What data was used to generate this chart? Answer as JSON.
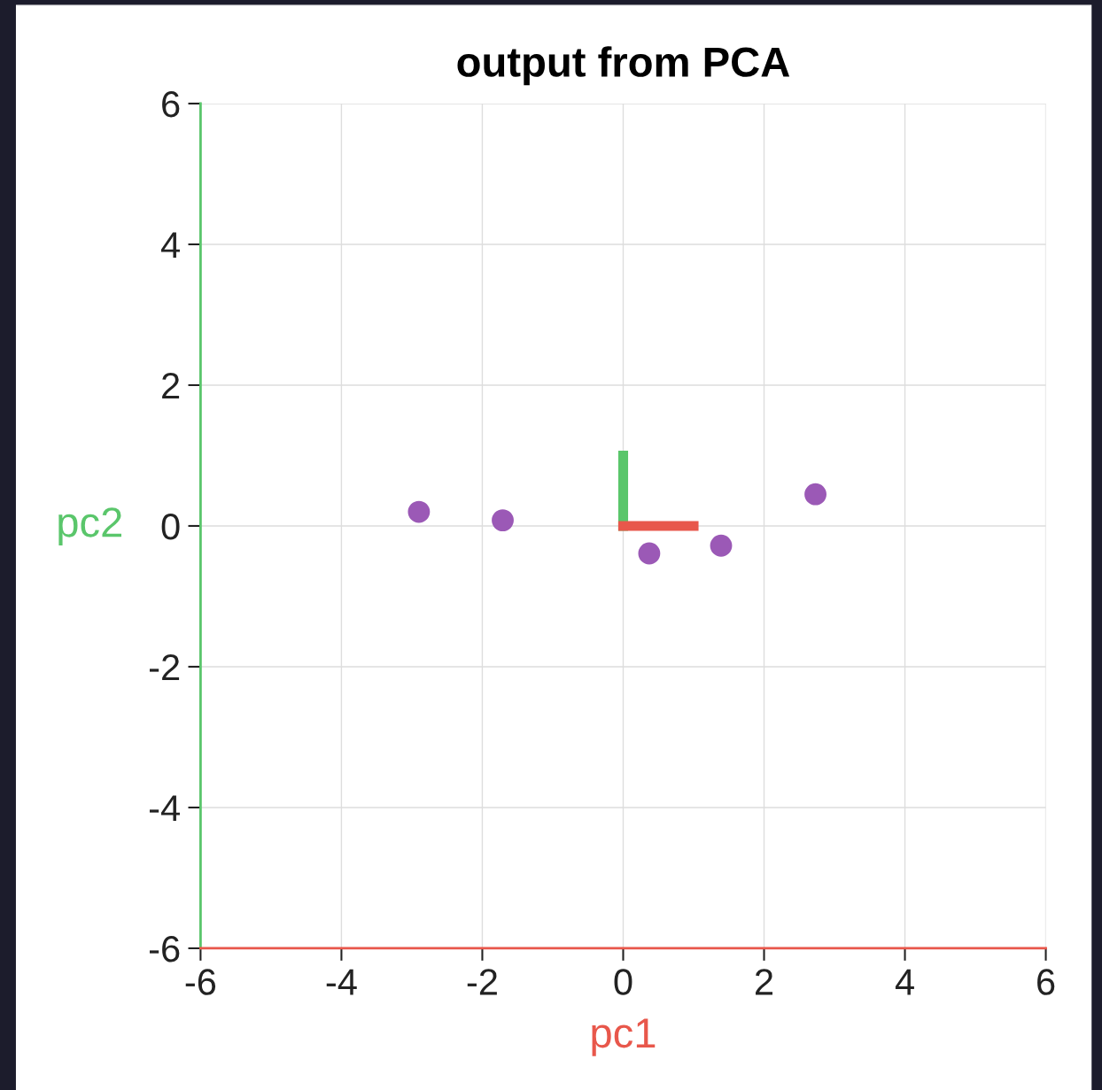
{
  "chart_data": {
    "type": "scatter",
    "title": "output from PCA",
    "xlabel": "pc1",
    "ylabel": "pc2",
    "xlim": [
      -6,
      6
    ],
    "ylim": [
      -6,
      6
    ],
    "xticks": [
      -6,
      -4,
      -2,
      0,
      2,
      4,
      6
    ],
    "yticks": [
      -6,
      -4,
      -2,
      0,
      2,
      4,
      6
    ],
    "grid": true,
    "series": [
      {
        "marker": "circle",
        "color": "#9b59b6",
        "x": [
          -2.9,
          -1.71,
          0.37,
          1.39,
          2.73
        ],
        "values": [
          0.2,
          0.08,
          -0.39,
          -0.28,
          0.45
        ]
      },
      {
        "type": "line",
        "color": "#5ac66b",
        "x": [
          0,
          0
        ],
        "values": [
          0,
          1
        ]
      },
      {
        "type": "line",
        "color": "#e8574b",
        "x": [
          0,
          1
        ],
        "values": [
          0,
          0
        ]
      }
    ]
  }
}
